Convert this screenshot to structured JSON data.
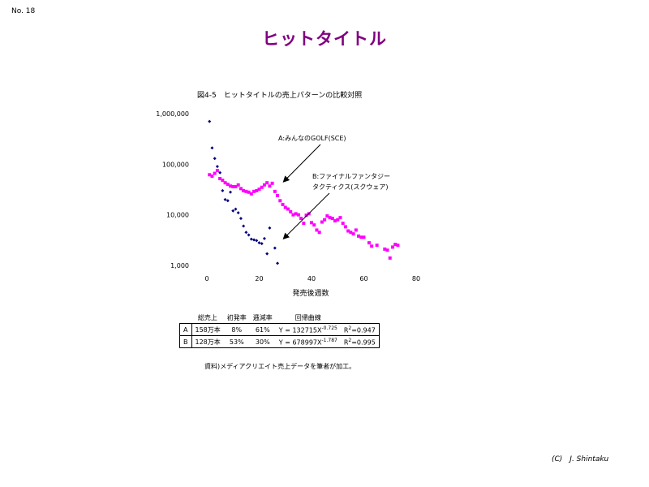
{
  "slide_number": "No. 18",
  "title": "ヒットタイトル",
  "figure_caption": "図4-5　ヒットタイトルの売上パターンの比較対照",
  "colors": {
    "title": "#800080",
    "series_a": "#ff00ff",
    "series_b": "#000080"
  },
  "chart_data": {
    "type": "scatter",
    "xlabel": "発売後週数",
    "xlim": [
      0,
      80
    ],
    "xticks": [
      "0",
      "20",
      "40",
      "60",
      "80"
    ],
    "ylim": [
      1000,
      1000000
    ],
    "yscale": "log",
    "yticks": [
      {
        "value": 1000000,
        "label": "1,000,000"
      },
      {
        "value": 100000,
        "label": "100,000"
      },
      {
        "value": 10000,
        "label": "10,000"
      },
      {
        "value": 1000,
        "label": "1,000"
      }
    ],
    "annotations": [
      {
        "lines": [
          "A:みんなのGOLF(SCE)"
        ],
        "target": [
          28,
          40000
        ]
      },
      {
        "lines": [
          "B:ファイナルファンタジー",
          "タクティクス(スクウェア)"
        ],
        "target": [
          28,
          3000
        ]
      }
    ],
    "series": [
      {
        "marker": "square",
        "points": [
          [
            1,
            62000
          ],
          [
            2,
            58000
          ],
          [
            3,
            66000
          ],
          [
            4,
            75000
          ],
          [
            5,
            52000
          ],
          [
            6,
            48000
          ],
          [
            7,
            43000
          ],
          [
            8,
            40000
          ],
          [
            9,
            37000
          ],
          [
            10,
            36000
          ],
          [
            11,
            36000
          ],
          [
            12,
            39000
          ],
          [
            13,
            33000
          ],
          [
            14,
            30000
          ],
          [
            15,
            29000
          ],
          [
            16,
            28000
          ],
          [
            17,
            26000
          ],
          [
            18,
            29000
          ],
          [
            19,
            30000
          ],
          [
            20,
            32000
          ],
          [
            21,
            35000
          ],
          [
            22,
            39000
          ],
          [
            23,
            43000
          ],
          [
            24,
            37000
          ],
          [
            25,
            42000
          ],
          [
            26,
            29000
          ],
          [
            27,
            24000
          ],
          [
            28,
            19000
          ],
          [
            29,
            16000
          ],
          [
            30,
            14000
          ],
          [
            31,
            13000
          ],
          [
            32,
            11500
          ],
          [
            33,
            10000
          ],
          [
            34,
            10500
          ],
          [
            35,
            10000
          ],
          [
            36,
            8500
          ],
          [
            37,
            6800
          ],
          [
            38,
            9800
          ],
          [
            39,
            10500
          ],
          [
            40,
            7000
          ],
          [
            41,
            6300
          ],
          [
            42,
            5000
          ],
          [
            43,
            4500
          ],
          [
            44,
            7200
          ],
          [
            45,
            8000
          ],
          [
            46,
            9500
          ],
          [
            47,
            8800
          ],
          [
            48,
            8500
          ],
          [
            49,
            7600
          ],
          [
            50,
            8000
          ],
          [
            51,
            8800
          ],
          [
            52,
            6800
          ],
          [
            53,
            5800
          ],
          [
            54,
            4800
          ],
          [
            55,
            4500
          ],
          [
            56,
            4200
          ],
          [
            57,
            5000
          ],
          [
            58,
            3800
          ],
          [
            59,
            3600
          ],
          [
            60,
            3600
          ],
          [
            62,
            2800
          ],
          [
            63,
            2400
          ],
          [
            65,
            2500
          ],
          [
            68,
            2100
          ],
          [
            69,
            2000
          ],
          [
            70,
            1400
          ],
          [
            71,
            2300
          ],
          [
            72,
            2600
          ],
          [
            73,
            2500
          ]
        ]
      },
      {
        "marker": "diamond",
        "points": [
          [
            1,
            700000
          ],
          [
            2,
            210000
          ],
          [
            3,
            130000
          ],
          [
            4,
            90000
          ],
          [
            5,
            68000
          ],
          [
            6,
            30000
          ],
          [
            7,
            20000
          ],
          [
            8,
            19000
          ],
          [
            9,
            28000
          ],
          [
            10,
            12000
          ],
          [
            11,
            13000
          ],
          [
            12,
            11000
          ],
          [
            13,
            8500
          ],
          [
            14,
            6000
          ],
          [
            15,
            4500
          ],
          [
            16,
            4000
          ],
          [
            17,
            3300
          ],
          [
            18,
            3200
          ],
          [
            19,
            3100
          ],
          [
            20,
            2800
          ],
          [
            21,
            2700
          ],
          [
            22,
            3400
          ],
          [
            23,
            1700
          ],
          [
            24,
            5500
          ],
          [
            26,
            2200
          ],
          [
            27,
            1100
          ]
        ]
      }
    ]
  },
  "stats_table": {
    "headers": [
      "",
      "総売上",
      "初発率",
      "逓減率",
      "回帰曲線",
      ""
    ],
    "rows": [
      {
        "label": "A",
        "total": "158万本",
        "initial": "8%",
        "decay": "61%",
        "eq_base": "Y = 132715X",
        "eq_exp": "-0.725",
        "r2_label": "R",
        "r2_exp": "2",
        "r2_value": "=0.947"
      },
      {
        "label": "B",
        "total": "128万本",
        "initial": "53%",
        "decay": "30%",
        "eq_base": "Y = 678997X",
        "eq_exp": "-1.787",
        "r2_label": "R",
        "r2_exp": "2",
        "r2_value": "=0.995"
      }
    ]
  },
  "source_note": "資料)メディアクリエイト売上データを筆者が加工。",
  "copyright": "(C)　J. Shintaku"
}
